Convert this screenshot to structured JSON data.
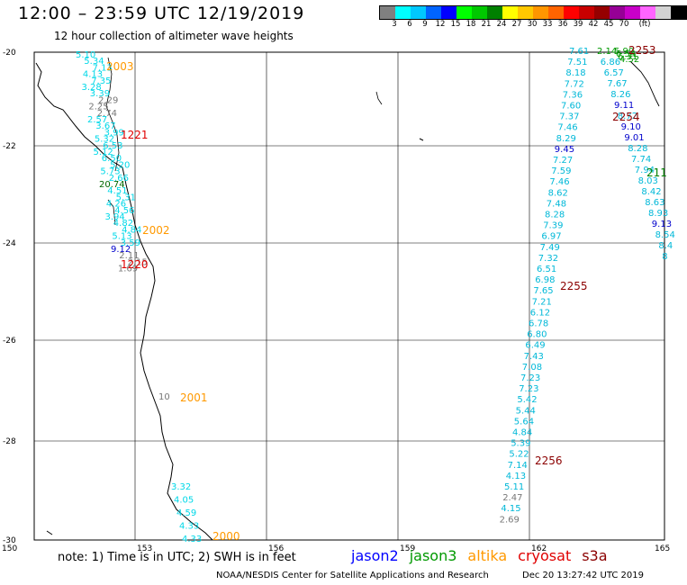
{
  "header": {
    "title": "12:00 – 23:59 UTC 12/19/2019",
    "subtitle": "12 hour collection of altimeter wave heights"
  },
  "scale": {
    "colors": [
      "#808080",
      "#00ffff",
      "#00c8ff",
      "#0064ff",
      "#0000ff",
      "#00ff00",
      "#00c800",
      "#008000",
      "#ffff00",
      "#ffc800",
      "#ff9600",
      "#ff6400",
      "#ff0000",
      "#c80000",
      "#960000",
      "#960096",
      "#c800c8",
      "#ff64ff",
      "#d2d2d2",
      "#000000"
    ],
    "labels": [
      "3",
      "6",
      "9",
      "12",
      "15",
      "18",
      "21",
      "24",
      "27",
      "30",
      "33",
      "36",
      "39",
      "42",
      "45",
      "70",
      "(ft)"
    ]
  },
  "axes": {
    "lon_labels": [
      "150",
      "153",
      "156",
      "159",
      "162",
      "165"
    ],
    "lat_labels": [
      "-20",
      "-22",
      "-24",
      "-26",
      "-28",
      "-30"
    ]
  },
  "passes": [
    {
      "id": "2003",
      "color": "#ff9900"
    },
    {
      "id": "1221",
      "color": "#e00000"
    },
    {
      "id": "2002",
      "color": "#ff9900"
    },
    {
      "id": "1220",
      "color": "#e00000"
    },
    {
      "id": "2001",
      "color": "#ff9900"
    },
    {
      "id": "2000",
      "color": "#ff9900"
    },
    {
      "id": "2253",
      "color": "#8b0000"
    },
    {
      "id": "2254",
      "color": "#8b0000"
    },
    {
      "id": "2255",
      "color": "#8b0000"
    },
    {
      "id": "2256",
      "color": "#8b0000"
    },
    {
      "id": "211",
      "color": "#008000"
    }
  ],
  "track_values": {
    "west_track": [
      "5.10",
      "5.34",
      "7.13",
      "4.13",
      "7.35",
      "3.28",
      "3.39",
      "2.29",
      "2.25",
      "2.74",
      "2.57",
      "3.67",
      "3.99",
      "5.32",
      "6.53",
      "5.12",
      "6.50",
      "5.20",
      "5.73",
      "2.66",
      "20.74",
      "4.51",
      "5.31",
      "4.26",
      "4.56",
      "3.94",
      "4.82",
      "4.84",
      "5.13",
      "3.59",
      "9.12",
      "2.11",
      "2.15",
      "1.69"
    ],
    "west_track_south": [
      "10",
      "3.32",
      "4.05",
      "4.59",
      "4.33",
      "4.33"
    ],
    "east_track_a": [
      "7.61",
      "7.51",
      "8.18",
      "7.72",
      "7.36",
      "7.60",
      "7.37",
      "7.46",
      "8.29",
      "9.45",
      "7.27",
      "7.59",
      "7.46",
      "8.62",
      "7.48",
      "8.28",
      "7.39",
      "6.97",
      "7.49",
      "7.32",
      "6.51",
      "6.98",
      "7.65",
      "7.21",
      "6.12",
      "6.78",
      "6.80",
      "6.49",
      "7.43",
      "7.08",
      "7.23",
      "7.23",
      "5.42",
      "5.44",
      "5.64",
      "4.84",
      "5.39",
      "5.22",
      "7.14",
      "4.13",
      "5.11",
      "2.47",
      "4.15",
      "2.69"
    ],
    "east_track_b": [
      "2.14",
      "6.86",
      "6.57",
      "7.67",
      "8.26",
      "9.11",
      "8.72",
      "9.10",
      "9.01",
      "8.28",
      "7.74",
      "7.94",
      "8.03",
      "8.42",
      "8.63",
      "8.93",
      "9.13",
      "8.54",
      "8.4",
      "8"
    ],
    "east_track_c": [
      "5.99",
      "6.54",
      "6.31",
      "4.52"
    ]
  },
  "footer": {
    "note": "note:  1) Time is in UTC;  2) SWH is in feet",
    "legend": [
      {
        "label": "jason2",
        "color": "#0000ff"
      },
      {
        "label": "jason3",
        "color": "#009900"
      },
      {
        "label": "altika",
        "color": "#ff9900"
      },
      {
        "label": "cryosat",
        "color": "#e00000"
      },
      {
        "label": "s3a",
        "color": "#8b0000"
      }
    ],
    "credit": "NOAA/NESDIS Center for Satellite Applications and Research",
    "date": "Dec 20 13:27:42 UTC 2019"
  }
}
